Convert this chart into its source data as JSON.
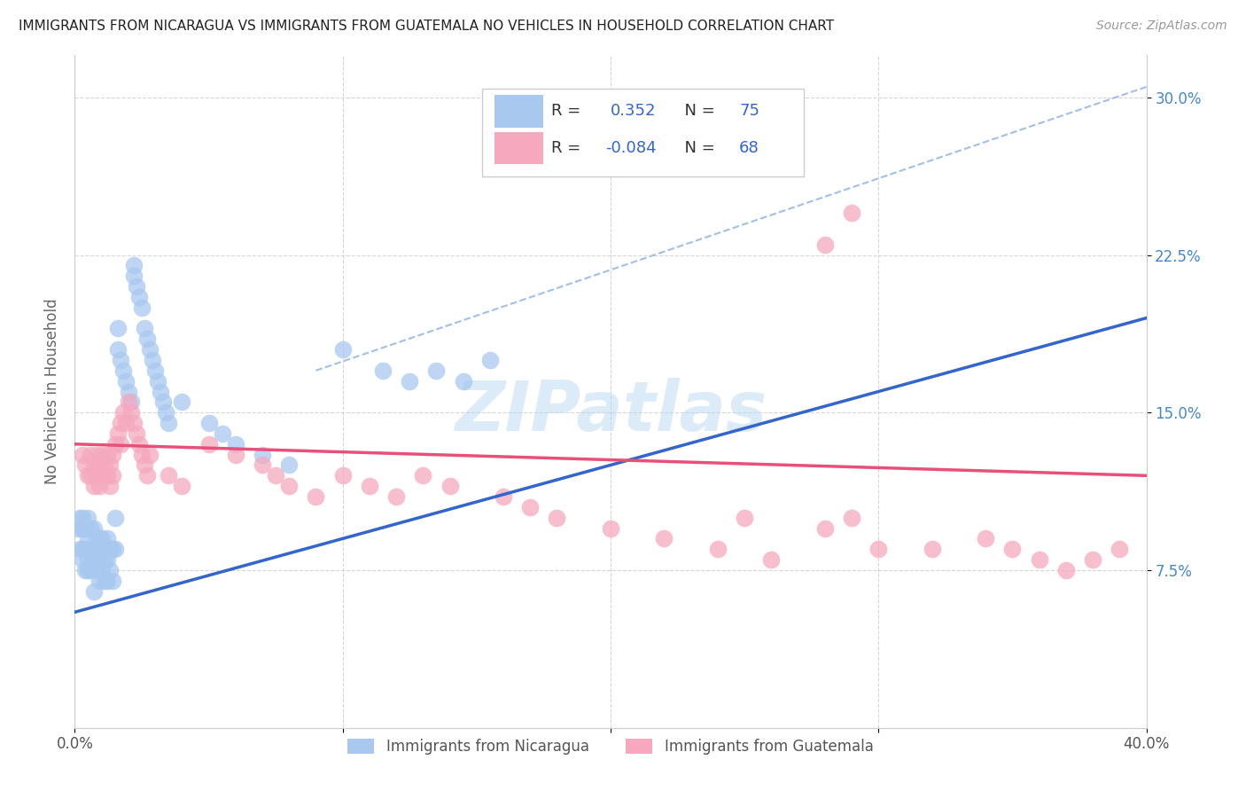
{
  "title": "IMMIGRANTS FROM NICARAGUA VS IMMIGRANTS FROM GUATEMALA NO VEHICLES IN HOUSEHOLD CORRELATION CHART",
  "source": "Source: ZipAtlas.com",
  "ylabel": "No Vehicles in Household",
  "xlim": [
    0.0,
    0.4
  ],
  "ylim": [
    0.0,
    0.32
  ],
  "yticks": [
    0.075,
    0.15,
    0.225,
    0.3
  ],
  "ytick_labels": [
    "7.5%",
    "15.0%",
    "22.5%",
    "30.0%"
  ],
  "xtick_positions": [
    0.0,
    0.1,
    0.2,
    0.3,
    0.4
  ],
  "xtick_labels": [
    "0.0%",
    "",
    "",
    "",
    "40.0%"
  ],
  "color_nicaragua": "#a8c8f0",
  "color_guatemala": "#f5a8be",
  "line_color_nicaragua": "#3366cc",
  "line_color_guatemala": "#e8507a",
  "dashed_line_color": "#a0c0e8",
  "nicaragua_r": 0.352,
  "nicaragua_n": 75,
  "guatemala_r": -0.084,
  "guatemala_n": 68,
  "nicaragua_x": [
    0.001,
    0.002,
    0.002,
    0.003,
    0.003,
    0.003,
    0.003,
    0.004,
    0.004,
    0.004,
    0.005,
    0.005,
    0.005,
    0.005,
    0.006,
    0.006,
    0.006,
    0.007,
    0.007,
    0.007,
    0.007,
    0.008,
    0.008,
    0.008,
    0.009,
    0.009,
    0.009,
    0.01,
    0.01,
    0.01,
    0.011,
    0.011,
    0.012,
    0.012,
    0.012,
    0.013,
    0.013,
    0.014,
    0.014,
    0.015,
    0.015,
    0.016,
    0.016,
    0.017,
    0.018,
    0.019,
    0.02,
    0.021,
    0.022,
    0.022,
    0.023,
    0.024,
    0.025,
    0.026,
    0.027,
    0.028,
    0.029,
    0.03,
    0.031,
    0.032,
    0.033,
    0.034,
    0.035,
    0.04,
    0.05,
    0.055,
    0.06,
    0.07,
    0.08,
    0.1,
    0.115,
    0.125,
    0.135,
    0.145,
    0.155
  ],
  "nicaragua_y": [
    0.095,
    0.1,
    0.085,
    0.1,
    0.095,
    0.085,
    0.08,
    0.095,
    0.085,
    0.075,
    0.1,
    0.09,
    0.08,
    0.075,
    0.095,
    0.085,
    0.075,
    0.095,
    0.085,
    0.08,
    0.065,
    0.09,
    0.085,
    0.075,
    0.09,
    0.08,
    0.07,
    0.09,
    0.085,
    0.075,
    0.08,
    0.07,
    0.09,
    0.08,
    0.07,
    0.085,
    0.075,
    0.085,
    0.07,
    0.1,
    0.085,
    0.19,
    0.18,
    0.175,
    0.17,
    0.165,
    0.16,
    0.155,
    0.215,
    0.22,
    0.21,
    0.205,
    0.2,
    0.19,
    0.185,
    0.18,
    0.175,
    0.17,
    0.165,
    0.16,
    0.155,
    0.15,
    0.145,
    0.155,
    0.145,
    0.14,
    0.135,
    0.13,
    0.125,
    0.18,
    0.17,
    0.165,
    0.17,
    0.165,
    0.175
  ],
  "guatemala_x": [
    0.003,
    0.004,
    0.005,
    0.006,
    0.006,
    0.007,
    0.007,
    0.008,
    0.008,
    0.009,
    0.009,
    0.01,
    0.01,
    0.011,
    0.012,
    0.012,
    0.013,
    0.013,
    0.014,
    0.014,
    0.015,
    0.016,
    0.017,
    0.017,
    0.018,
    0.019,
    0.02,
    0.021,
    0.022,
    0.023,
    0.024,
    0.025,
    0.026,
    0.027,
    0.028,
    0.035,
    0.04,
    0.05,
    0.06,
    0.07,
    0.075,
    0.08,
    0.09,
    0.1,
    0.11,
    0.12,
    0.13,
    0.14,
    0.16,
    0.17,
    0.18,
    0.2,
    0.22,
    0.24,
    0.25,
    0.26,
    0.28,
    0.29,
    0.3,
    0.32,
    0.34,
    0.35,
    0.36,
    0.37,
    0.38,
    0.39,
    0.28,
    0.29
  ],
  "guatemala_y": [
    0.13,
    0.125,
    0.12,
    0.13,
    0.12,
    0.125,
    0.115,
    0.13,
    0.12,
    0.125,
    0.115,
    0.13,
    0.12,
    0.125,
    0.13,
    0.12,
    0.125,
    0.115,
    0.13,
    0.12,
    0.135,
    0.14,
    0.145,
    0.135,
    0.15,
    0.145,
    0.155,
    0.15,
    0.145,
    0.14,
    0.135,
    0.13,
    0.125,
    0.12,
    0.13,
    0.12,
    0.115,
    0.135,
    0.13,
    0.125,
    0.12,
    0.115,
    0.11,
    0.12,
    0.115,
    0.11,
    0.12,
    0.115,
    0.11,
    0.105,
    0.1,
    0.095,
    0.09,
    0.085,
    0.1,
    0.08,
    0.095,
    0.1,
    0.085,
    0.085,
    0.09,
    0.085,
    0.08,
    0.075,
    0.08,
    0.085,
    0.23,
    0.245
  ]
}
